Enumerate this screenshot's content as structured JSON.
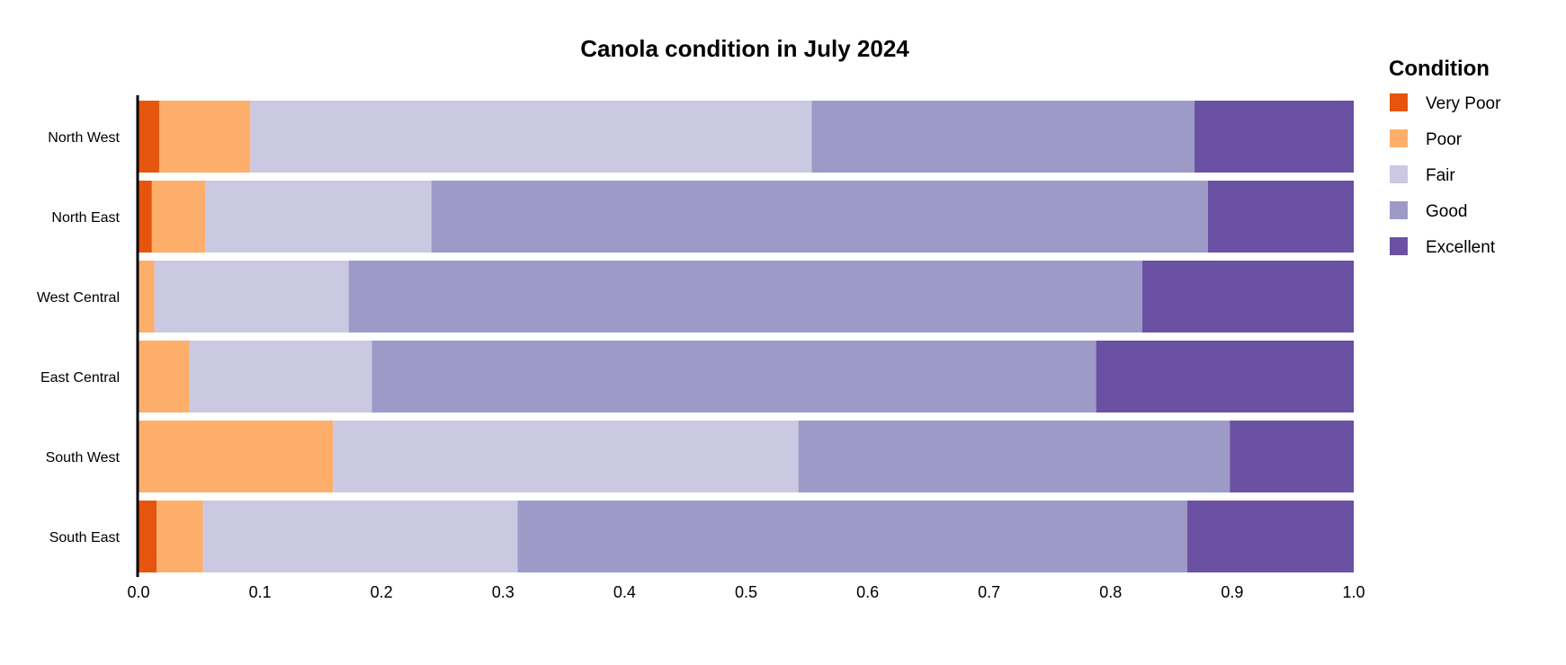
{
  "chart_data": {
    "type": "bar",
    "orientation": "horizontal",
    "stacked": true,
    "title": "Canola condition in July 2024",
    "xlabel": "",
    "ylabel": "",
    "xlim": [
      0,
      1
    ],
    "x_ticks": [
      "0.0",
      "0.1",
      "0.2",
      "0.3",
      "0.4",
      "0.5",
      "0.6",
      "0.7",
      "0.8",
      "0.9",
      "1.0"
    ],
    "x_tick_values": [
      0,
      0.1,
      0.2,
      0.3,
      0.4,
      0.5,
      0.6,
      0.7,
      0.8,
      0.9,
      1.0
    ],
    "grid": false,
    "legend_title": "Condition",
    "legend_position": "right",
    "categories": [
      "North West",
      "North East",
      "West Central",
      "East Central",
      "South West",
      "South East"
    ],
    "series": [
      {
        "name": "Very Poor",
        "color": "#e6550d",
        "values": [
          0.017,
          0.011,
          0.0,
          0.0,
          0.0,
          0.015
        ]
      },
      {
        "name": "Poor",
        "color": "#fdae6b",
        "values": [
          0.075,
          0.044,
          0.013,
          0.042,
          0.16,
          0.038
        ]
      },
      {
        "name": "Fair",
        "color": "#cbc9e2",
        "values": [
          0.462,
          0.186,
          0.16,
          0.15,
          0.383,
          0.259
        ]
      },
      {
        "name": "Good",
        "color": "#9e9ac8",
        "values": [
          0.315,
          0.639,
          0.653,
          0.596,
          0.355,
          0.551
        ]
      },
      {
        "name": "Excellent",
        "color": "#6a51a3",
        "values": [
          0.131,
          0.12,
          0.174,
          0.212,
          0.102,
          0.137
        ]
      }
    ]
  }
}
